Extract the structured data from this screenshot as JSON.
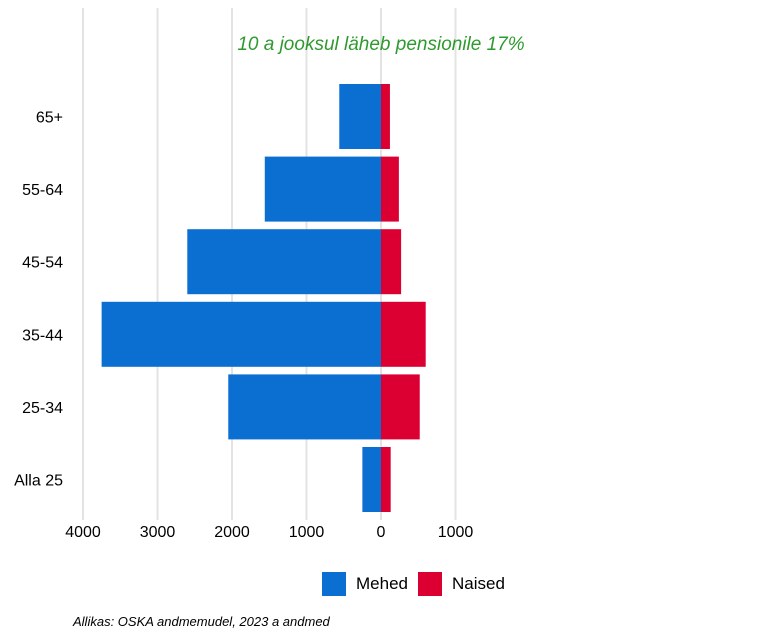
{
  "chart_data": {
    "type": "bar",
    "orientation": "horizontal",
    "layout": "population-pyramid",
    "title": "10 a jooksul läheb pensionile 17%",
    "title_color": "#2e9a2e",
    "categories": [
      "65+",
      "55-64",
      "45-54",
      "35-44",
      "25-34",
      "Alla 25"
    ],
    "series": [
      {
        "name": "Mehed",
        "color": "#0a6fd0",
        "values": [
          -560,
          -1560,
          -2600,
          -3750,
          -2050,
          -250
        ]
      },
      {
        "name": "Naised",
        "color": "#dc0032",
        "values": [
          120,
          240,
          270,
          600,
          520,
          130
        ]
      }
    ],
    "xlim": [
      -4000,
      1000
    ],
    "xticks": [
      -4000,
      -3000,
      -2000,
      -1000,
      0,
      1000
    ],
    "xtick_labels": [
      "4000",
      "3000",
      "2000",
      "1000",
      "0",
      "1000"
    ],
    "grid": "vertical",
    "legend_position": "bottom"
  },
  "legend": {
    "mehed_label": "Mehed",
    "naised_label": "Naised",
    "mehed_color": "#0a6fd0",
    "naised_color": "#dc0032"
  },
  "source_note": "Allikas: OSKA andmemudel, 2023 a andmed"
}
